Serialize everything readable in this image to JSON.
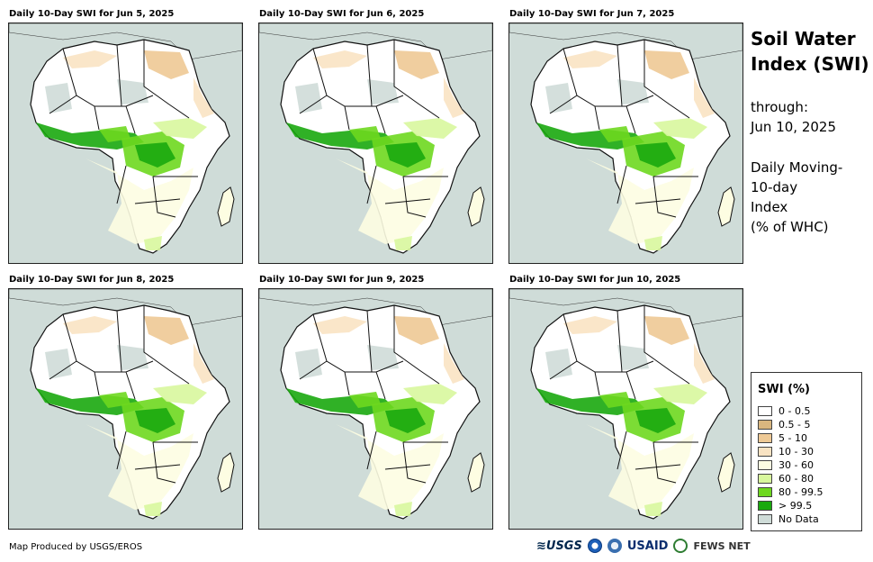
{
  "panels": [
    {
      "title": "Daily 10-Day SWI for Jun 5, 2025"
    },
    {
      "title": "Daily 10-Day SWI for Jun 6, 2025"
    },
    {
      "title": "Daily 10-Day SWI for Jun 7, 2025"
    },
    {
      "title": "Daily 10-Day SWI for Jun 8, 2025"
    },
    {
      "title": "Daily 10-Day SWI for Jun 9, 2025"
    },
    {
      "title": "Daily 10-Day SWI for Jun 10, 2025"
    }
  ],
  "side": {
    "title_line1": "Soil Water",
    "title_line2": "Index (SWI)",
    "through_label": "through:",
    "through_date": "Jun 10, 2025",
    "desc_line1": "Daily Moving-",
    "desc_line2": "10-day",
    "desc_line3": "Index",
    "desc_line4": "(% of WHC)"
  },
  "legend": {
    "title": "SWI (%)",
    "items": [
      {
        "label": "0 - 0.5",
        "color": "#ffffff"
      },
      {
        "label": "0.5 - 5",
        "color": "#d9b67f"
      },
      {
        "label": "5 - 10",
        "color": "#eec995"
      },
      {
        "label": "10 - 30",
        "color": "#f9e3c3"
      },
      {
        "label": "30 - 60",
        "color": "#fdfde2"
      },
      {
        "label": "60 - 80",
        "color": "#d8f79d"
      },
      {
        "label": "80 - 99.5",
        "color": "#6ed81f"
      },
      {
        "label": "> 99.5",
        "color": "#1aa90e"
      },
      {
        "label": "No Data",
        "color": "#cfdcd8"
      }
    ]
  },
  "footer": {
    "credit": "Map Produced by USGS/EROS"
  },
  "logos": {
    "usgs": "≋USGS",
    "usaid": "USAID",
    "fews": "FEWS NET"
  }
}
